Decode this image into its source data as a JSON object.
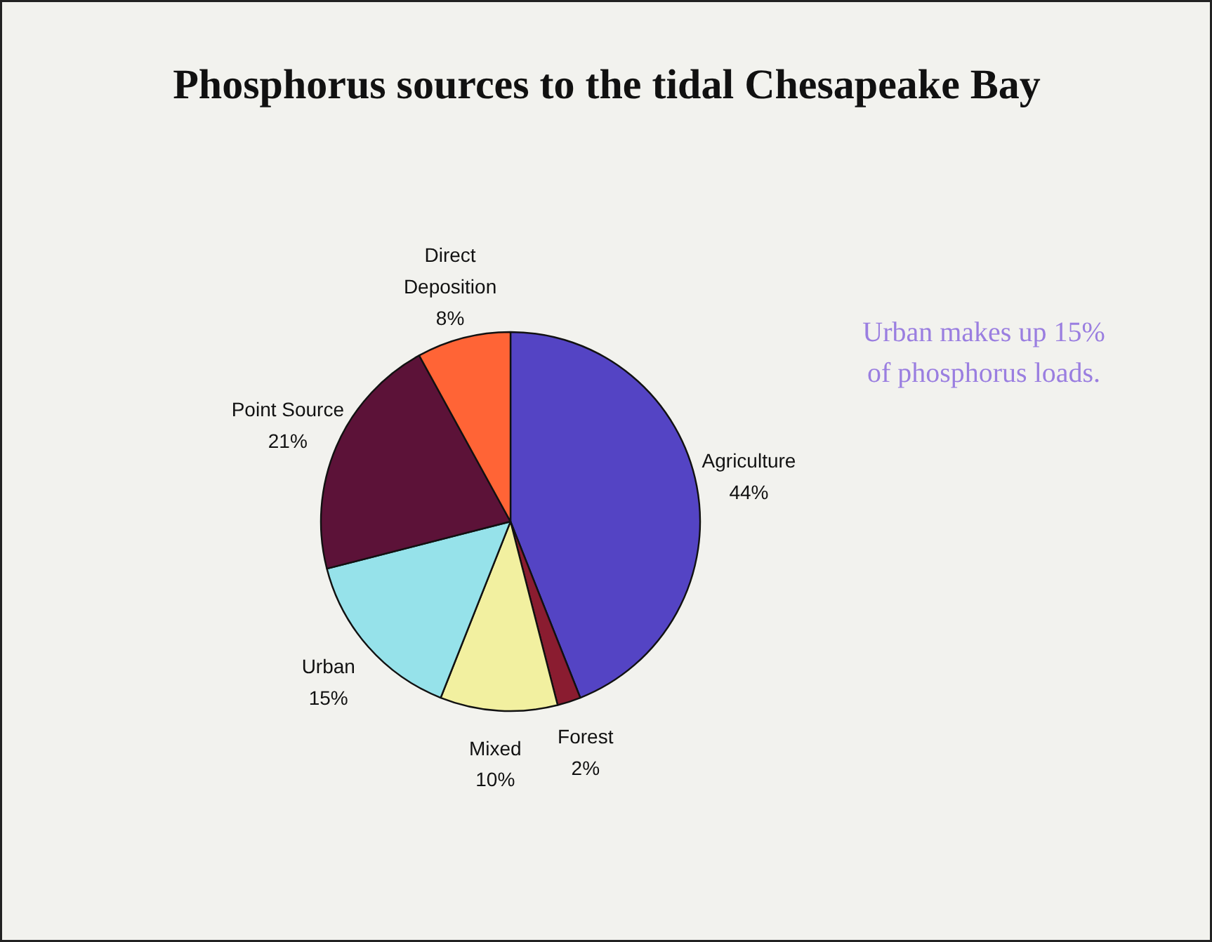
{
  "chart_data": {
    "type": "pie",
    "title": "Phosphorus sources to the tidal Chesapeake Bay",
    "categories": [
      "Agriculture",
      "Forest",
      "Mixed",
      "Urban",
      "Point Source",
      "Direct Deposition"
    ],
    "values": [
      44,
      2,
      10,
      15,
      21,
      8
    ],
    "colors": [
      "#5444c4",
      "#8a1c30",
      "#f2f0a0",
      "#96e2ea",
      "#5c1238",
      "#ff6436"
    ],
    "value_labels": [
      "44%",
      "2%",
      "10%",
      "15%",
      "21%",
      "8%"
    ],
    "annotations": [
      "Urban makes up 15%\nof phosphorus loads."
    ]
  }
}
